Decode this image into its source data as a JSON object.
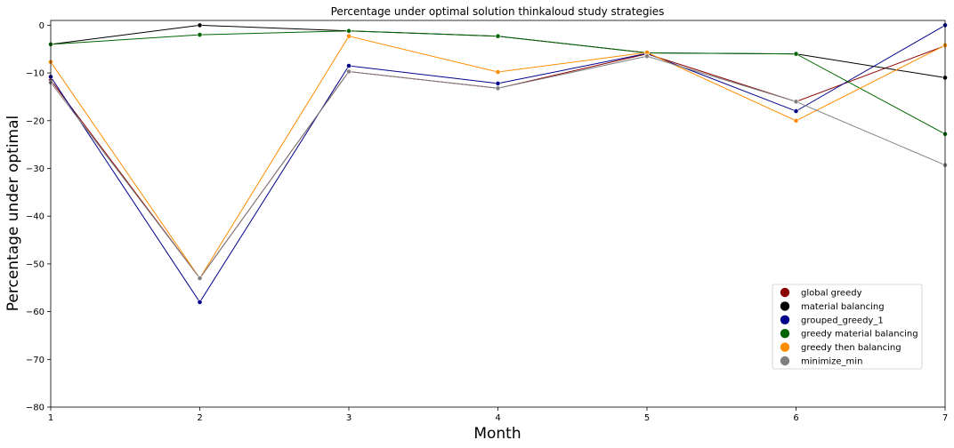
{
  "chart_data": {
    "type": "line",
    "title": "Percentage under optimal solution thinkaloud study strategies",
    "xlabel": "Month",
    "ylabel": "Percentage under optimal",
    "x": [
      1,
      2,
      3,
      4,
      5,
      6,
      7
    ],
    "xlim": [
      1,
      7
    ],
    "ylim": [
      -80,
      1
    ],
    "xticks": [
      "1",
      "2",
      "3",
      "4",
      "5",
      "6",
      "7"
    ],
    "yticks": [
      "0",
      "−10",
      "−20",
      "−30",
      "−40",
      "−50",
      "−60",
      "−70",
      "−80"
    ],
    "ytick_values": [
      0,
      -10,
      -20,
      -30,
      -40,
      -50,
      -60,
      -70,
      -80
    ],
    "grid": false,
    "legend_position": "lower right",
    "series": [
      {
        "name": "global greedy",
        "color": "#8b0000",
        "values": [
          -11.5,
          -53,
          -9.7,
          -13.2,
          -6.0,
          -16.0,
          -4.3
        ]
      },
      {
        "name": "material balancing",
        "color": "#000000",
        "values": [
          -4.0,
          0.0,
          -1.2,
          -2.3,
          -5.8,
          -6.0,
          -11.0
        ]
      },
      {
        "name": "grouped_greedy_1",
        "color": "#00008b",
        "values": [
          -10.8,
          -58,
          -8.5,
          -12.2,
          -5.9,
          -18.0,
          0.0
        ]
      },
      {
        "name": "greedy material balancing",
        "color": "#006400",
        "values": [
          -4.0,
          -2.0,
          -1.2,
          -2.3,
          -5.8,
          -6.0,
          -22.8
        ]
      },
      {
        "name": "greedy then balancing",
        "color": "#ff8c00",
        "values": [
          -7.7,
          -53,
          -2.3,
          -9.8,
          -5.7,
          -20.0,
          -4.2
        ]
      },
      {
        "name": "minimize_min",
        "color": "#808080",
        "values": [
          -12.0,
          -53,
          -9.7,
          -13.2,
          -6.5,
          -16.0,
          -29.3
        ]
      }
    ]
  }
}
